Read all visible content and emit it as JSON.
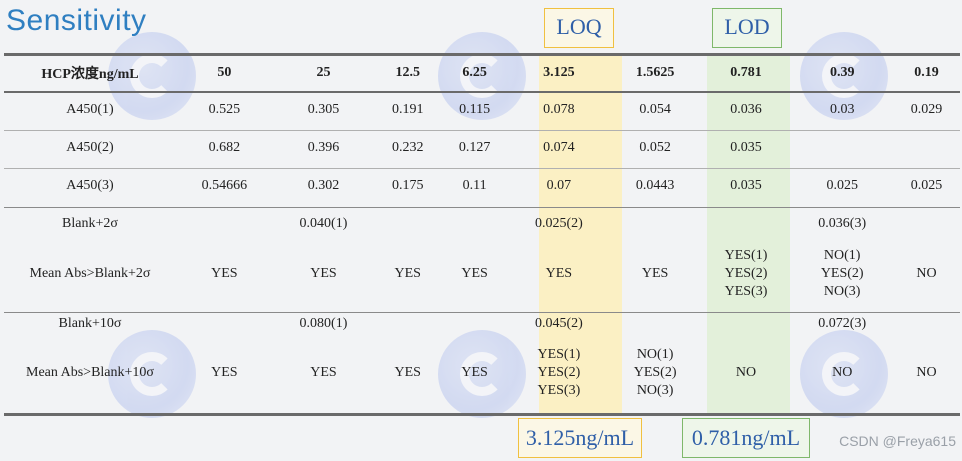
{
  "title": "Sensitivity",
  "labels": {
    "loq": "LOQ",
    "lod": "LOD"
  },
  "bottom": {
    "loq_value": "3.125ng/mL",
    "lod_value": "0.781ng/mL"
  },
  "watermark": "CSDN @Freya615",
  "table": {
    "header": [
      "HCP浓度ng/mL",
      "50",
      "25",
      "12.5",
      "6.25",
      "3.125",
      "1.5625",
      "0.781",
      "0.39",
      "0.19"
    ],
    "rows": [
      {
        "label": "A450(1)",
        "cells": [
          "0.525",
          "0.305",
          "0.191",
          "0.115",
          "0.078",
          "0.054",
          "0.036",
          "0.03",
          "0.029"
        ]
      },
      {
        "label": "A450(2)",
        "cells": [
          "0.682",
          "0.396",
          "0.232",
          "0.127",
          "0.074",
          "0.052",
          "0.035",
          "",
          ""
        ]
      },
      {
        "label": "A450(3)",
        "cells": [
          "0.54666",
          "0.302",
          "0.175",
          "0.11",
          "0.07",
          "0.0443",
          "0.035",
          "0.025",
          "0.025"
        ]
      },
      {
        "label": "Blank+2σ",
        "cells": [
          "",
          "0.040(1)",
          "",
          "",
          "0.025(2)",
          "",
          "",
          "0.036(3)",
          ""
        ]
      },
      {
        "label": "Mean Abs>Blank+2σ",
        "cells": [
          "YES",
          "YES",
          "YES",
          "YES",
          "YES",
          "YES",
          "YES(1)|YES(2)|YES(3)",
          "NO(1)|YES(2)|NO(3)",
          "NO"
        ]
      },
      {
        "label": "Blank+10σ",
        "cells": [
          "",
          "0.080(1)",
          "",
          "",
          "0.045(2)",
          "",
          "",
          "0.072(3)",
          ""
        ]
      },
      {
        "label": "Mean Abs>Blank+10σ",
        "cells": [
          "YES",
          "YES",
          "YES",
          "YES",
          "YES(1)|YES(2)|YES(3)",
          "NO(1)|YES(2)|NO(3)",
          "NO",
          "NO",
          "NO"
        ]
      }
    ]
  }
}
